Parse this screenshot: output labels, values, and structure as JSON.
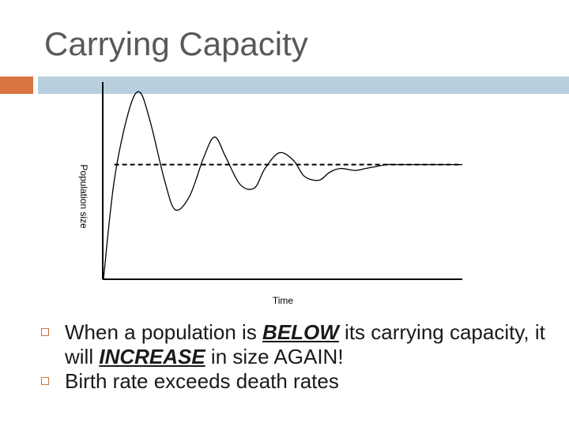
{
  "slide": {
    "title": "Carrying Capacity",
    "accent_colors": {
      "left_block": "#d8743f",
      "bar": "#b7cfdf"
    }
  },
  "chart_data": {
    "type": "line",
    "xlabel": "Time",
    "ylabel": "Population size",
    "grid": false,
    "legend": "none",
    "xlim": [
      0,
      100
    ],
    "ylim": [
      0,
      100
    ],
    "carrying_capacity": 58,
    "series": [
      {
        "values_x": [
          0,
          3,
          7,
          10,
          13,
          17,
          20,
          24,
          28,
          31,
          34,
          38,
          42,
          45,
          49,
          53,
          56,
          60,
          63,
          66,
          70,
          73,
          76,
          79,
          82,
          86,
          90,
          94,
          97,
          100
        ],
        "values_y": [
          0,
          50,
          85,
          95,
          80,
          50,
          35,
          42,
          62,
          72,
          62,
          48,
          46,
          56,
          64,
          60,
          52,
          50,
          54,
          56,
          55,
          56,
          57,
          58,
          58,
          58,
          58,
          58,
          58,
          58
        ]
      }
    ]
  },
  "bullets": [
    {
      "segments": [
        {
          "text": "When a population is ",
          "emph": false
        },
        {
          "text": "BELOW",
          "emph": true
        },
        {
          "text": " its carrying capacity, it will ",
          "emph": false
        },
        {
          "text": "INCREASE",
          "emph": true
        },
        {
          "text": " in size AGAIN!",
          "emph": false
        }
      ]
    },
    {
      "segments": [
        {
          "text": "Birth rate exceeds death rates",
          "emph": false
        }
      ]
    }
  ]
}
